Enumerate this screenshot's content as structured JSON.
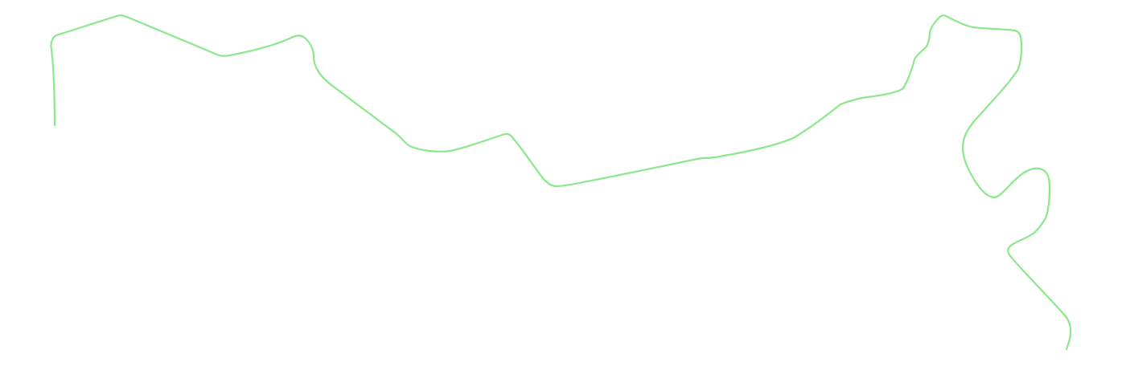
{
  "canvas": {
    "background_color": "#ffffff"
  },
  "route": {
    "stroke_color": "#8be88b",
    "description_shape": "single continuous polyline"
  }
}
